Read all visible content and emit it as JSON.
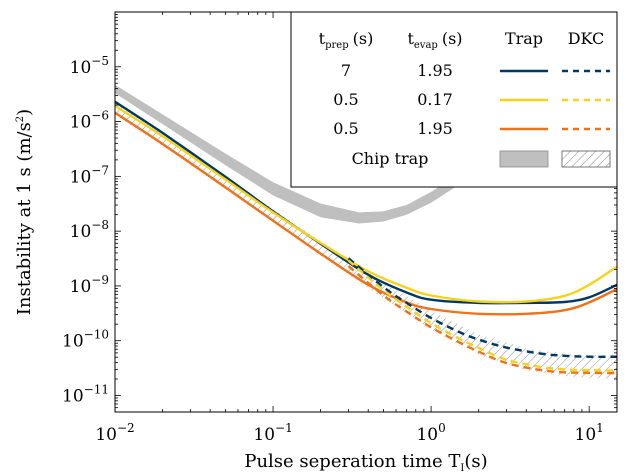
{
  "chart_data": {
    "type": "line",
    "xlabel": "Pulse seperation time T",
    "xlabel_sub": "I",
    "xlabel_unit": "(s)",
    "ylabel": "Instability at 1 s (m/s",
    "ylabel_sup": "2",
    "ylabel_end": ")",
    "x_scale": "log",
    "y_scale": "log",
    "xlim": [
      0.01,
      15
    ],
    "ylim": [
      5e-12,
      0.0001
    ],
    "x_ticks": [
      {
        "value": 0.01,
        "base": "10",
        "exp": "−2"
      },
      {
        "value": 0.1,
        "base": "10",
        "exp": "−1"
      },
      {
        "value": 1,
        "base": "10",
        "exp": "0"
      },
      {
        "value": 10,
        "base": "10",
        "exp": "1"
      }
    ],
    "y_ticks": [
      {
        "value": 1e-11,
        "base": "10",
        "exp": "−11"
      },
      {
        "value": 1e-10,
        "base": "10",
        "exp": "−10"
      },
      {
        "value": 1e-09,
        "base": "10",
        "exp": "−9"
      },
      {
        "value": 1e-08,
        "base": "10",
        "exp": "−8"
      },
      {
        "value": 1e-07,
        "base": "10",
        "exp": "−7"
      },
      {
        "value": 1e-06,
        "base": "10",
        "exp": "−6"
      },
      {
        "value": 1e-05,
        "base": "10",
        "exp": "−5"
      }
    ],
    "grid": false,
    "legend_position": "top-right",
    "legend": {
      "headers": {
        "tprep": "t",
        "tprep_sub": "prep",
        "tprep_unit": "(s)",
        "tevap": "t",
        "tevap_sub": "evap",
        "tevap_unit": "(s)",
        "trap": "Trap",
        "dkc": "DKC"
      },
      "rows": [
        {
          "tprep": "7",
          "tevap": "1.95",
          "color": "#003865"
        },
        {
          "tprep": "0.5",
          "tevap": "0.17",
          "color": "#f6d21a"
        },
        {
          "tprep": "0.5",
          "tevap": "1.95",
          "color": "#f07117"
        }
      ],
      "chip_label": "Chip trap"
    },
    "series": [
      {
        "tprep": "7",
        "tevap": "1.95",
        "style": "Trap",
        "color": "#003865",
        "x": [
          0.01,
          0.02,
          0.05,
          0.1,
          0.2,
          0.4,
          0.7,
          1,
          2,
          4,
          7,
          10,
          15
        ],
        "y": [
          2.3e-06,
          6.2e-07,
          9.8e-08,
          2.3e-08,
          5.9e-09,
          1.6e-09,
          7.6e-10,
          5.6e-10,
          4.9e-10,
          4.9e-10,
          5.1e-10,
          6.2e-10,
          1.05e-09
        ]
      },
      {
        "tprep": "7",
        "tevap": "1.95",
        "style": "DKC",
        "color": "#003865",
        "x": [
          0.3,
          0.5,
          0.7,
          1,
          1.5,
          2,
          3,
          5,
          7,
          10,
          15
        ],
        "y": [
          3.2e-09,
          9.5e-10,
          4.9e-10,
          2.6e-10,
          1.45e-10,
          1.05e-10,
          7.5e-11,
          5.8e-11,
          5.3e-11,
          5.1e-11,
          5.1e-11
        ]
      },
      {
        "tprep": "0.5",
        "tevap": "0.17",
        "style": "Trap",
        "color": "#f6d21a",
        "x": [
          0.01,
          0.02,
          0.05,
          0.1,
          0.2,
          0.4,
          0.7,
          1,
          2,
          4,
          7,
          10,
          15
        ],
        "y": [
          1.95e-06,
          5.4e-07,
          8.8e-08,
          2.2e-08,
          6.1e-09,
          1.85e-09,
          9.3e-10,
          6.7e-10,
          5.2e-10,
          5.2e-10,
          6.6e-10,
          1.05e-09,
          2.25e-09
        ]
      },
      {
        "tprep": "0.5",
        "tevap": "0.17",
        "style": "DKC",
        "color": "#f6d21a",
        "x": [
          0.3,
          0.5,
          0.7,
          1,
          1.5,
          2,
          3,
          5,
          7,
          10,
          15
        ],
        "y": [
          2.9e-09,
          8.4e-10,
          4.2e-10,
          2.1e-10,
          1.1e-10,
          7.4e-11,
          4.5e-11,
          3.3e-11,
          3e-11,
          2.9e-11,
          2.85e-11
        ]
      },
      {
        "tprep": "0.5",
        "tevap": "1.95",
        "style": "Trap",
        "color": "#f07117",
        "x": [
          0.01,
          0.02,
          0.05,
          0.1,
          0.2,
          0.4,
          0.7,
          1,
          2,
          4,
          7,
          10,
          15
        ],
        "y": [
          1.45e-06,
          3.9e-07,
          6.3e-08,
          1.55e-08,
          3.9e-09,
          1.05e-09,
          5e-10,
          3.8e-10,
          3.1e-10,
          3.1e-10,
          3.6e-10,
          5e-10,
          8.8e-10
        ]
      },
      {
        "tprep": "0.5",
        "tevap": "1.95",
        "style": "DKC",
        "color": "#f07117",
        "x": [
          0.3,
          0.5,
          0.7,
          1,
          1.5,
          2,
          3,
          5,
          7,
          10,
          15
        ],
        "y": [
          2.3e-09,
          6.7e-10,
          3.4e-10,
          1.75e-10,
          9.4e-11,
          6.3e-11,
          3.9e-11,
          2.9e-11,
          2.65e-11,
          2.6e-11,
          2.55e-11
        ]
      }
    ],
    "bands": [
      {
        "name": "Chip trap",
        "style": "Trap",
        "color": "#bfbfbf",
        "x": [
          0.01,
          0.02,
          0.05,
          0.1,
          0.2,
          0.35,
          0.5,
          0.7,
          1,
          1.5,
          2,
          2.5
        ],
        "y_low": [
          3.3e-06,
          9e-07,
          1.6e-07,
          4.5e-08,
          1.8e-08,
          1.38e-08,
          1.5e-08,
          2e-08,
          3.3e-08,
          7e-08,
          1.35e-07,
          2.2e-07
        ],
        "y_high": [
          4.7e-06,
          1.35e-06,
          2.6e-07,
          7.8e-08,
          3.2e-08,
          2.2e-08,
          2.3e-08,
          3e-08,
          5.2e-08,
          1.1e-07,
          2e-07,
          3.2e-07
        ]
      },
      {
        "name": "Chip trap",
        "style": "DKC",
        "color": "#8c8c8c",
        "x": [
          0.01,
          0.02,
          0.05,
          0.1,
          0.2,
          0.4,
          0.7,
          1,
          2,
          4,
          7,
          10,
          15
        ],
        "y_low": [
          1.3e-06,
          3.6e-07,
          5.8e-08,
          1.45e-08,
          3.6e-09,
          9e-10,
          3.2e-10,
          1.6e-10,
          5.6e-11,
          2.9e-11,
          2.25e-11,
          2.1e-11,
          2e-11
        ],
        "y_high": [
          2.2e-06,
          6e-07,
          1.01e-07,
          2.55e-08,
          6.6e-09,
          1.75e-09,
          6.6e-10,
          3.5e-10,
          1.3e-10,
          7.2e-11,
          5.8e-11,
          5.5e-11,
          5.4e-11
        ]
      }
    ]
  }
}
